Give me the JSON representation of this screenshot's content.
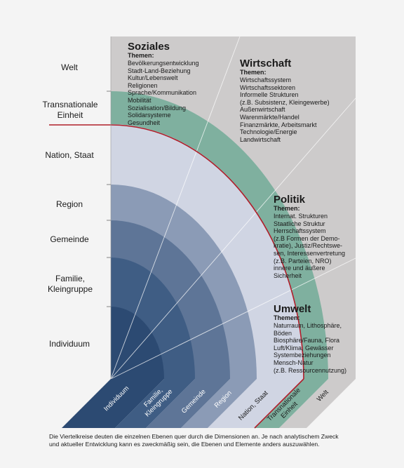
{
  "levels": [
    "Welt",
    "Transnationale Einheit",
    "Nation, Staat",
    "Region",
    "Gemeinde",
    "Familie, Kleingruppe",
    "Individuum"
  ],
  "axis_levels": [
    "Individuum",
    "Familie, Kleingruppe",
    "Gemeinde",
    "Region",
    "Nation, Staat",
    "Transnationale Einheit",
    "Welt"
  ],
  "dimensions": {
    "soziales": {
      "title": "Soziales",
      "subtitle": "Themen:",
      "items": [
        "Bevölkerungsentwicklung",
        "Stadt-Land-Beziehung",
        "Kultur/Lebenswelt",
        "Religionen",
        "Sprache/Kommunikation",
        "Mobilität",
        "Sozialisation/Bildung",
        "Solidarsysteme",
        "Gesundheit"
      ]
    },
    "wirtschaft": {
      "title": "Wirtschaft",
      "subtitle": "Themen:",
      "items": [
        "Wirtschaftssystem",
        "Wirtschaftssektoren",
        "Informelle Strukturen",
        "(z.B. Subsistenz, Kleingewerbe)",
        "Außenwirtschaft",
        "Warenmärkte/Handel",
        "Finanzmärkte, Arbeitsmarkt",
        "Technologie/Energie",
        "Landwirtschaft"
      ]
    },
    "politik": {
      "title": "Politik",
      "subtitle": "Themen:",
      "items": [
        "Internat. Strukturen",
        "Staatliche Struktur",
        "Herrschaftssystem",
        "(z.B Formen der Demo-",
        "kratie), Justiz/Rechtswe-",
        "sen, Interessenvertretung",
        "(z.B. Parteien, NRO)",
        "innere und äußere",
        "Sicherheit"
      ]
    },
    "umwelt": {
      "title": "Umwelt",
      "subtitle": "Themen:",
      "items": [
        "Naturraum, Lithosphäre,",
        "Böden",
        "Biosphäre/Fauna, Flora",
        "Luft/Klima, Gewässer",
        "Systembeziehungen",
        "Mensch-Natur",
        "(z.B. Ressourcennutzung)"
      ]
    }
  },
  "caption": [
    "Die Viertelkreise deuten die einzelnen Ebenen quer durch die Dimensionen an. Je nach analytischem Zweck",
    "und aktueller Entwicklung kann es zweckmäßig sein, die Ebenen und Elemente anders auszuwählen."
  ],
  "colors": {
    "individuum": "#2c4a72",
    "familie": "#3f5d84",
    "gemeinde": "#5e7597",
    "region": "#8b9bb6",
    "nation": "#d0d5e3",
    "transnational": "#7fb09f",
    "welt": "#cdcbcb",
    "frontier": "#b01e2a",
    "background": "#f4f4f4"
  }
}
